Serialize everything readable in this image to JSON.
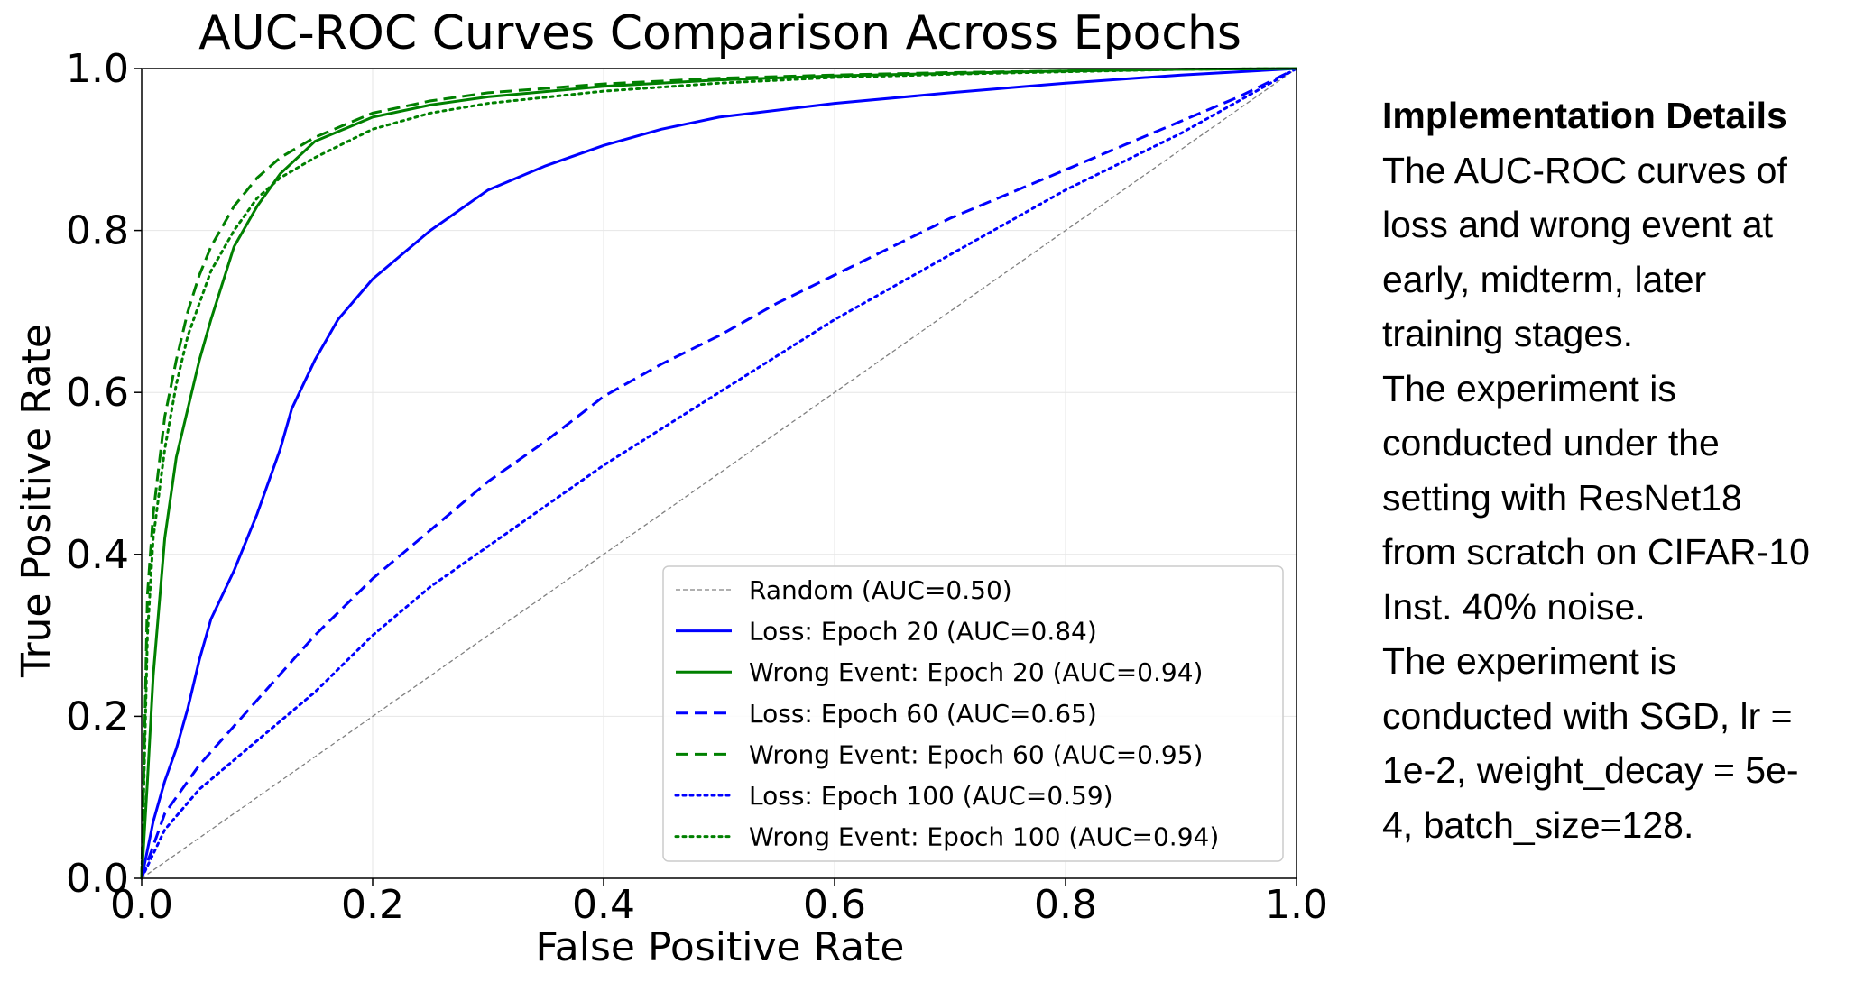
{
  "chart_data": {
    "type": "line",
    "title": "AUC-ROC Curves Comparison Across Epochs",
    "xlabel": "False Positive Rate",
    "ylabel": "True Positive Rate",
    "xlim": [
      0.0,
      1.0
    ],
    "ylim": [
      0.0,
      1.0
    ],
    "xticks": [
      "0.0",
      "0.2",
      "0.4",
      "0.6",
      "0.8",
      "1.0"
    ],
    "yticks": [
      "0.0",
      "0.2",
      "0.4",
      "0.6",
      "0.8",
      "1.0"
    ],
    "grid": true,
    "legend_position": "lower-right",
    "series": [
      {
        "name": "Random (AUC=0.50)",
        "color": "#808080",
        "style": "dashed-thin",
        "x": [
          0.0,
          1.0
        ],
        "y": [
          0.0,
          1.0
        ]
      },
      {
        "name": "Loss: Epoch 20 (AUC=0.84)",
        "color": "#0000ff",
        "style": "solid",
        "x": [
          0.0,
          0.01,
          0.02,
          0.03,
          0.04,
          0.05,
          0.06,
          0.08,
          0.1,
          0.12,
          0.13,
          0.15,
          0.17,
          0.2,
          0.25,
          0.3,
          0.35,
          0.4,
          0.45,
          0.5,
          0.6,
          0.7,
          0.8,
          0.9,
          1.0
        ],
        "y": [
          0.0,
          0.07,
          0.12,
          0.16,
          0.21,
          0.27,
          0.32,
          0.38,
          0.45,
          0.53,
          0.58,
          0.64,
          0.69,
          0.74,
          0.8,
          0.85,
          0.88,
          0.905,
          0.925,
          0.94,
          0.957,
          0.97,
          0.982,
          0.992,
          1.0
        ]
      },
      {
        "name": "Wrong Event: Epoch 20 (AUC=0.94)",
        "color": "#008000",
        "style": "solid",
        "x": [
          0.0,
          0.005,
          0.01,
          0.02,
          0.03,
          0.04,
          0.05,
          0.06,
          0.08,
          0.1,
          0.12,
          0.15,
          0.2,
          0.25,
          0.3,
          0.4,
          0.5,
          0.6,
          0.7,
          0.8,
          0.9,
          1.0
        ],
        "y": [
          0.0,
          0.12,
          0.25,
          0.42,
          0.52,
          0.58,
          0.64,
          0.69,
          0.78,
          0.83,
          0.87,
          0.91,
          0.94,
          0.955,
          0.965,
          0.978,
          0.986,
          0.991,
          0.994,
          0.997,
          0.999,
          1.0
        ]
      },
      {
        "name": "Loss: Epoch 60 (AUC=0.65)",
        "color": "#0000ff",
        "style": "dashed",
        "x": [
          0.0,
          0.02,
          0.05,
          0.1,
          0.15,
          0.2,
          0.25,
          0.3,
          0.35,
          0.4,
          0.45,
          0.5,
          0.55,
          0.6,
          0.65,
          0.7,
          0.75,
          0.8,
          0.85,
          0.9,
          0.95,
          1.0
        ],
        "y": [
          0.0,
          0.08,
          0.14,
          0.22,
          0.3,
          0.37,
          0.43,
          0.49,
          0.54,
          0.595,
          0.635,
          0.67,
          0.71,
          0.745,
          0.78,
          0.815,
          0.845,
          0.875,
          0.905,
          0.935,
          0.965,
          1.0
        ]
      },
      {
        "name": "Wrong Event: Epoch 60 (AUC=0.95)",
        "color": "#008000",
        "style": "dashed",
        "x": [
          0.0,
          0.005,
          0.01,
          0.02,
          0.03,
          0.04,
          0.05,
          0.06,
          0.08,
          0.1,
          0.12,
          0.15,
          0.2,
          0.25,
          0.3,
          0.4,
          0.5,
          0.6,
          0.7,
          0.8,
          0.9,
          1.0
        ],
        "y": [
          0.0,
          0.35,
          0.45,
          0.57,
          0.64,
          0.7,
          0.745,
          0.78,
          0.83,
          0.865,
          0.89,
          0.915,
          0.945,
          0.96,
          0.97,
          0.981,
          0.988,
          0.992,
          0.995,
          0.997,
          0.999,
          1.0
        ]
      },
      {
        "name": "Loss: Epoch 100 (AUC=0.59)",
        "color": "#0000ff",
        "style": "dotted",
        "x": [
          0.0,
          0.02,
          0.05,
          0.1,
          0.15,
          0.2,
          0.25,
          0.3,
          0.35,
          0.4,
          0.45,
          0.5,
          0.55,
          0.6,
          0.65,
          0.7,
          0.75,
          0.8,
          0.85,
          0.9,
          0.95,
          1.0
        ],
        "y": [
          0.0,
          0.06,
          0.11,
          0.17,
          0.23,
          0.3,
          0.36,
          0.41,
          0.46,
          0.51,
          0.555,
          0.6,
          0.645,
          0.69,
          0.73,
          0.77,
          0.81,
          0.85,
          0.885,
          0.92,
          0.96,
          1.0
        ]
      },
      {
        "name": "Wrong Event: Epoch 100 (AUC=0.94)",
        "color": "#008000",
        "style": "dotted",
        "x": [
          0.0,
          0.005,
          0.01,
          0.02,
          0.03,
          0.04,
          0.05,
          0.06,
          0.08,
          0.1,
          0.12,
          0.15,
          0.2,
          0.25,
          0.3,
          0.4,
          0.5,
          0.6,
          0.7,
          0.8,
          0.9,
          1.0
        ],
        "y": [
          0.0,
          0.3,
          0.42,
          0.53,
          0.61,
          0.67,
          0.71,
          0.75,
          0.8,
          0.84,
          0.865,
          0.89,
          0.925,
          0.945,
          0.957,
          0.972,
          0.982,
          0.989,
          0.993,
          0.996,
          0.999,
          1.0
        ]
      }
    ]
  },
  "side_panel": {
    "heading": "Implementation Details",
    "lines": [
      "The AUC-ROC curves of",
      "loss and wrong event at",
      "early, midterm, later",
      "training stages.",
      "The experiment is",
      "conducted under the",
      "setting with ResNet18",
      "from scratch on CIFAR-10",
      "Inst. 40% noise.",
      "The experiment is",
      "conducted with SGD, lr =",
      "1e-2, weight_decay = 5e-",
      "4, batch_size=128."
    ]
  }
}
